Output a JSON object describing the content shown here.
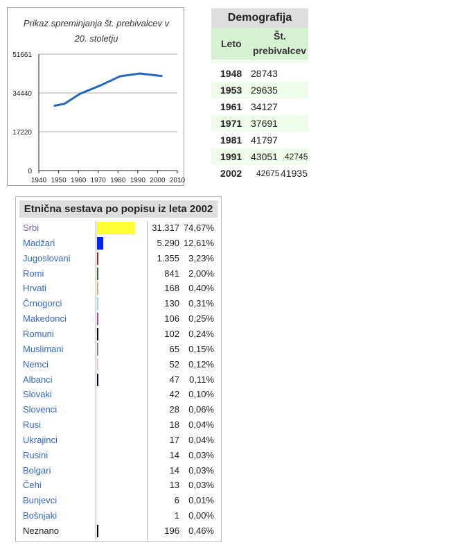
{
  "chart_data": {
    "type": "line",
    "title": "Prikaz spreminjanja št. prebivalcev v 20. stoletju",
    "title_lines": [
      "Prikaz spreminjanja št. prebivalcev v",
      "20. stoletju"
    ],
    "x": [
      1948,
      1953,
      1961,
      1971,
      1981,
      1991,
      2002
    ],
    "y": [
      28743,
      29635,
      34127,
      37691,
      41797,
      43051,
      41935
    ],
    "xlim": [
      1940,
      2010
    ],
    "ylim": [
      0,
      51661
    ],
    "xticks": [
      "1940",
      "1950",
      "1960",
      "1970",
      "1980",
      "1990",
      "2000",
      "2010"
    ],
    "yticks": [
      "0",
      "17220",
      "34440",
      "51661"
    ],
    "grid": true,
    "line_color": "#1f68c0"
  },
  "demografija": {
    "title": "Demografija",
    "col_year": "Leto",
    "col_pop_1": "Št.",
    "col_pop_2": "prebivalcev",
    "rows": [
      {
        "year": "1948",
        "pop": "28743"
      },
      {
        "year": "1953",
        "pop": "29635"
      },
      {
        "year": "1961",
        "pop": "34127"
      },
      {
        "year": "1971",
        "pop": "37691"
      },
      {
        "year": "1981",
        "pop": "41797"
      },
      {
        "year": "1991",
        "pop": "43051",
        "extra": "42745"
      },
      {
        "year": "2002",
        "pop": "42675",
        "extra": "41935"
      }
    ]
  },
  "etnicna": {
    "title": "Etnična sestava po popisu iz leta 2002",
    "rows": [
      {
        "name": "Srbi",
        "count": "31.317",
        "pct": "74,67%",
        "value": 74.67,
        "color": "#ffff33",
        "link": "visited"
      },
      {
        "name": "Madžari",
        "count": "5.290",
        "pct": "12,61%",
        "value": 12.61,
        "color": "#0022ff"
      },
      {
        "name": "Jugoslovani",
        "count": "1.355",
        "pct": "3,23%",
        "value": 3.23,
        "color": "#b22222"
      },
      {
        "name": "Romi",
        "count": "841",
        "pct": "2,00%",
        "value": 2.0,
        "color": "#336633"
      },
      {
        "name": "Hrvati",
        "count": "168",
        "pct": "0,40%",
        "value": 0.4,
        "color": "#d8b070"
      },
      {
        "name": "Črnogorci",
        "count": "130",
        "pct": "0,31%",
        "value": 0.31,
        "color": "#99dde8"
      },
      {
        "name": "Makedonci",
        "count": "106",
        "pct": "0,25%",
        "value": 0.25,
        "color": "#aa44aa"
      },
      {
        "name": "Romuni",
        "count": "102",
        "pct": "0,24%",
        "value": 0.24,
        "color": "#000000"
      },
      {
        "name": "Muslimani",
        "count": "65",
        "pct": "0,15%",
        "value": 0.15,
        "color": "#888888"
      },
      {
        "name": "Nemci",
        "count": "52",
        "pct": "0,12%",
        "value": 0.12,
        "color": "#f0c8d8"
      },
      {
        "name": "Albanci",
        "count": "47",
        "pct": "0,11%",
        "value": 0.11,
        "color": "#000033"
      },
      {
        "name": "Slovaki",
        "count": "42",
        "pct": "0,10%",
        "value": 0.1,
        "color": "#ffffff"
      },
      {
        "name": "Slovenci",
        "count": "28",
        "pct": "0,06%",
        "value": 0.06,
        "color": "#ffffff"
      },
      {
        "name": "Rusi",
        "count": "18",
        "pct": "0,04%",
        "value": 0.04,
        "color": "#ffffff"
      },
      {
        "name": "Ukrajinci",
        "count": "17",
        "pct": "0,04%",
        "value": 0.04,
        "color": "#ffffff"
      },
      {
        "name": "Rusini",
        "count": "14",
        "pct": "0,03%",
        "value": 0.03,
        "color": "#ffffff"
      },
      {
        "name": "Bolgari",
        "count": "14",
        "pct": "0,03%",
        "value": 0.03,
        "color": "#ffffff"
      },
      {
        "name": "Čehi",
        "count": "13",
        "pct": "0,03%",
        "value": 0.03,
        "color": "#ffffff"
      },
      {
        "name": "Bunjevci",
        "count": "6",
        "pct": "0,01%",
        "value": 0.01,
        "color": "#ffffff"
      },
      {
        "name": "Bošnjaki",
        "count": "1",
        "pct": "0,00%",
        "value": 0.0,
        "color": "#ffffff"
      },
      {
        "name": "Neznano",
        "count": "196",
        "pct": "0,46%",
        "value": 0.46,
        "color": "#000000",
        "link": "none"
      }
    ]
  }
}
